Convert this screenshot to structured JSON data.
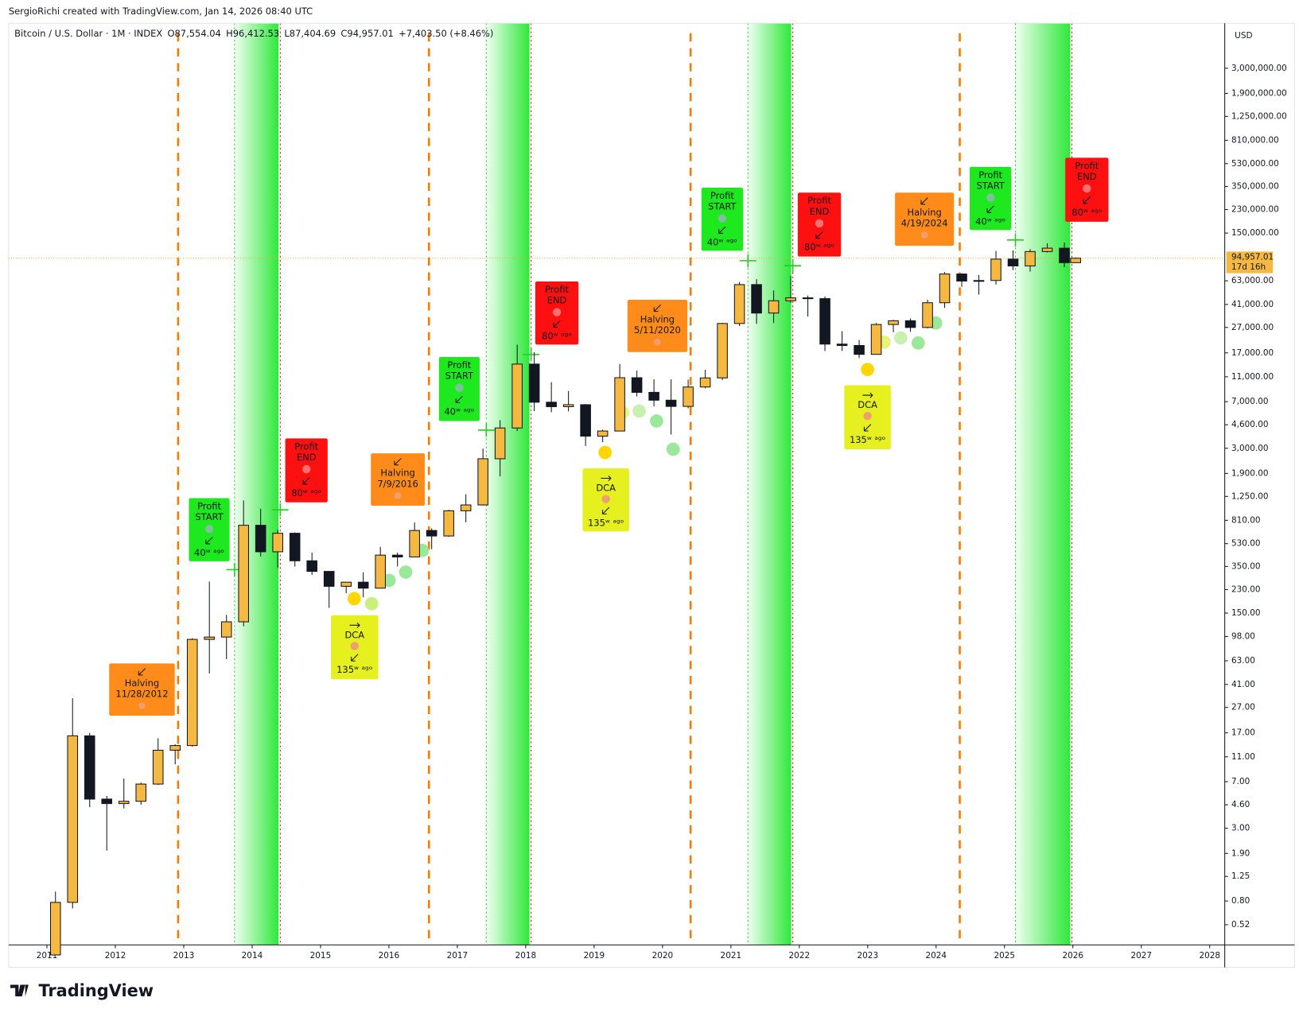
{
  "header": "SergioRichi created with TradingView.com, Jan 14, 2026 08:40 UTC",
  "logo": "TradingView",
  "chart_data": {
    "type": "candlestick",
    "title": "Bitcoin / U.S. Dollar · 1M · INDEX",
    "ohlc_labels": [
      "O87,554.04",
      "H96,412.53",
      "L87,404.69",
      "C94,957.01",
      "+7,403.50 (+8.46%)"
    ],
    "currency": "USD",
    "last_price_label": "94,957.01",
    "countdown": "17d 16h",
    "log_scale": true,
    "up_color": "#f5b942",
    "down_color": "#131722",
    "xlim": [
      2010.44,
      2028.22
    ],
    "xticks": [
      2011,
      2012,
      2013,
      2014,
      2015,
      2016,
      2017,
      2018,
      2019,
      2020,
      2021,
      2022,
      2023,
      2024,
      2025,
      2026,
      2027,
      2028
    ],
    "ylim": [
      0.36,
      6800000
    ],
    "yticks": [
      {
        "value": 3000000,
        "label": "3,000,000.00"
      },
      {
        "value": 1900000,
        "label": "1,900,000.00"
      },
      {
        "value": 1250000,
        "label": "1,250,000.00"
      },
      {
        "value": 810000,
        "label": "810,000.00"
      },
      {
        "value": 530000,
        "label": "530,000.00"
      },
      {
        "value": 350000,
        "label": "350,000.00"
      },
      {
        "value": 230000,
        "label": "230,000.00"
      },
      {
        "value": 150000,
        "label": "150,000.00"
      },
      {
        "value": 63000,
        "label": "63,000.00"
      },
      {
        "value": 41000,
        "label": "41,000.00"
      },
      {
        "value": 27000,
        "label": "27,000.00"
      },
      {
        "value": 17000,
        "label": "17,000.00"
      },
      {
        "value": 11000,
        "label": "11,000.00"
      },
      {
        "value": 7000,
        "label": "7,000.00"
      },
      {
        "value": 4600,
        "label": "4,600.00"
      },
      {
        "value": 3000,
        "label": "3,000.00"
      },
      {
        "value": 1900,
        "label": "1,900.00"
      },
      {
        "value": 1250,
        "label": "1,250.00"
      },
      {
        "value": 810,
        "label": "810.00"
      },
      {
        "value": 530,
        "label": "530.00"
      },
      {
        "value": 350,
        "label": "350.00"
      },
      {
        "value": 230,
        "label": "230.00"
      },
      {
        "value": 150,
        "label": "150.00"
      },
      {
        "value": 98,
        "label": "98.00"
      },
      {
        "value": 63,
        "label": "63.00"
      },
      {
        "value": 41,
        "label": "41.00"
      },
      {
        "value": 27,
        "label": "27.00"
      },
      {
        "value": 17,
        "label": "17.00"
      },
      {
        "value": 11,
        "label": "11.00"
      },
      {
        "value": 7,
        "label": "7.00"
      },
      {
        "value": 4.6,
        "label": "4.60"
      },
      {
        "value": 3,
        "label": "3.00"
      },
      {
        "value": 1.9,
        "label": "1.90"
      },
      {
        "value": 1.25,
        "label": "1.25"
      },
      {
        "value": 0.8,
        "label": "0.80"
      },
      {
        "value": 0.52,
        "label": "0.52"
      }
    ],
    "x": [
      2011.125,
      2011.375,
      2011.625,
      2011.875,
      2012.125,
      2012.375,
      2012.625,
      2012.875,
      2013.125,
      2013.375,
      2013.625,
      2013.875,
      2014.125,
      2014.375,
      2014.625,
      2014.875,
      2015.125,
      2015.375,
      2015.625,
      2015.875,
      2016.125,
      2016.375,
      2016.625,
      2016.875,
      2017.125,
      2017.375,
      2017.625,
      2017.875,
      2018.125,
      2018.375,
      2018.625,
      2018.875,
      2019.125,
      2019.375,
      2019.625,
      2019.875,
      2020.125,
      2020.375,
      2020.625,
      2020.875,
      2021.125,
      2021.375,
      2021.625,
      2021.875,
      2022.125,
      2022.375,
      2022.625,
      2022.875,
      2023.125,
      2023.375,
      2023.625,
      2023.875,
      2024.125,
      2024.375,
      2024.625,
      2024.875,
      2025.125,
      2025.375,
      2025.625,
      2025.875,
      2026.04
    ],
    "open": [
      0.3,
      0.78,
      16.1,
      5.1,
      4.7,
      4.9,
      6.7,
      12.4,
      13.5,
      93,
      97,
      128,
      740,
      457,
      640,
      388,
      320,
      244,
      263,
      236,
      430,
      416,
      673,
      609,
      963,
      1071,
      2480,
      4340,
      13860,
      6930,
      6390,
      6625,
      3740,
      4105,
      10820,
      8290,
      7190,
      6420,
      9140,
      10780,
      28990,
      58800,
      35040,
      43820,
      46200,
      45530,
      19930,
      19430,
      16540,
      28470,
      30470,
      26970,
      42270,
      71290,
      62680,
      63330,
      93430,
      82550,
      107200,
      114000,
      87554.04
    ],
    "high": [
      0.95,
      31.9,
      17,
      5.4,
      7.4,
      6.9,
      15.4,
      13.8,
      95,
      266,
      145,
      1163,
      1000,
      680,
      650,
      450,
      320,
      260,
      315,
      500,
      450,
      780,
      700,
      980,
      1300,
      2980,
      5000,
      19700,
      17200,
      9990,
      8500,
      6700,
      4200,
      13880,
      12300,
      10500,
      10500,
      10440,
      12480,
      29300,
      61780,
      64900,
      52900,
      69000,
      48200,
      47400,
      25200,
      21500,
      29190,
      31000,
      31800,
      44700,
      73800,
      72000,
      70000,
      108300,
      109600,
      112000,
      124500,
      126200,
      96412.53
    ],
    "low": [
      0.3,
      0.7,
      4.4,
      2.0,
      4.3,
      4.6,
      6.6,
      9.6,
      13.2,
      50,
      65,
      118,
      420,
      340,
      350,
      300,
      165,
      215,
      200,
      235,
      350,
      415,
      480,
      600,
      780,
      1060,
      1800,
      4100,
      5900,
      5780,
      5860,
      3130,
      3350,
      4080,
      7700,
      6430,
      3850,
      6200,
      8920,
      10370,
      27700,
      28800,
      29270,
      42000,
      32900,
      17570,
      17600,
      15480,
      16500,
      24750,
      24900,
      26550,
      38500,
      56500,
      49000,
      58900,
      76600,
      74500,
      105300,
      80600,
      87404.69
    ],
    "close": [
      0.78,
      16.1,
      5.1,
      4.7,
      4.9,
      6.7,
      12.4,
      13.5,
      93,
      97,
      128,
      740,
      457,
      640,
      388,
      320,
      244,
      263,
      236,
      430,
      416,
      673,
      609,
      963,
      1071,
      2480,
      4340,
      13860,
      6930,
      6390,
      6625,
      3740,
      4105,
      10820,
      8290,
      7190,
      6420,
      9140,
      10780,
      28990,
      58800,
      35040,
      43820,
      46200,
      45530,
      19930,
      19430,
      16540,
      28470,
      30470,
      26970,
      42270,
      71290,
      62680,
      63330,
      93430,
      82550,
      107200,
      114000,
      87550,
      94957.01
    ],
    "annotations": [
      {
        "title": "Halving",
        "subtitle": "11/28/2012"
      },
      {
        "title": "Profit",
        "subtitle": "START",
        "note": "40ʷ ᵃᵍᵒ"
      },
      {
        "title": "Profit",
        "subtitle": "END",
        "note": "80ʷ ᵃᵍᵒ"
      },
      {
        "title": "DCA",
        "note": "135ʷ ᵃᵍᵒ"
      },
      {
        "title": "Halving",
        "subtitle": "7/9/2016"
      },
      {
        "title": "Profit",
        "subtitle": "START",
        "note": "40ʷ ᵃᵍᵒ"
      },
      {
        "title": "Profit",
        "subtitle": "END",
        "note": "80ʷ ᵃᵍᵒ"
      },
      {
        "title": "DCA",
        "note": "135ʷ ᵃᵍᵒ"
      },
      {
        "title": "Halving",
        "subtitle": "5/11/2020"
      },
      {
        "title": "Profit",
        "subtitle": "START",
        "note": "40ʷ ᵃᵍᵒ"
      },
      {
        "title": "Profit",
        "subtitle": "END",
        "note": "80ʷ ᵃᵍᵒ"
      },
      {
        "title": "Halving",
        "subtitle": "4/19/2024"
      },
      {
        "title": "DCA",
        "note": "135ʷ ᵃᵍᵒ"
      },
      {
        "title": "Profit",
        "subtitle": "START",
        "note": "40ʷ ᵃᵍᵒ"
      },
      {
        "title": "Profit",
        "subtitle": "END",
        "note": "80ʷ ᵃᵍᵒ"
      }
    ]
  }
}
